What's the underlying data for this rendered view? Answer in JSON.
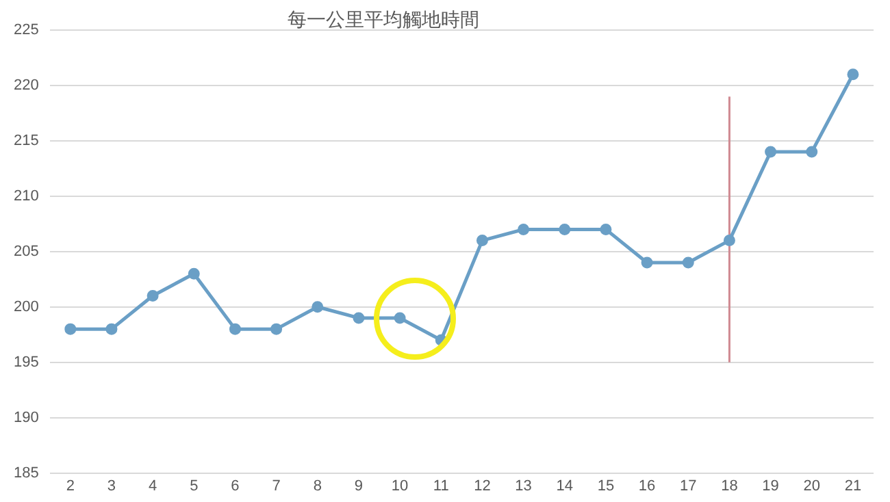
{
  "chart_data": {
    "type": "line",
    "title": "每一公里平均觸地時間",
    "categories": [
      "2",
      "3",
      "4",
      "5",
      "6",
      "7",
      "8",
      "9",
      "10",
      "11",
      "12",
      "13",
      "14",
      "15",
      "16",
      "17",
      "18",
      "19",
      "20",
      "21"
    ],
    "series": [
      {
        "color": "#6a9fc6",
        "values": [
          198,
          198,
          201,
          203,
          198,
          198,
          200,
          199,
          199,
          197,
          206,
          207,
          207,
          207,
          204,
          204,
          206,
          214,
          214,
          221
        ]
      },
      {
        "type": "line",
        "color": "#d08a92",
        "x": [
          "18",
          "18"
        ],
        "values": [
          195,
          219
        ],
        "marker": "none"
      }
    ],
    "ylim": [
      185,
      225
    ],
    "yticks": [
      185,
      190,
      195,
      200,
      205,
      210,
      215,
      220,
      225
    ],
    "grid": "y",
    "legend": false,
    "marker": "circle",
    "line_style": "solid"
  }
}
